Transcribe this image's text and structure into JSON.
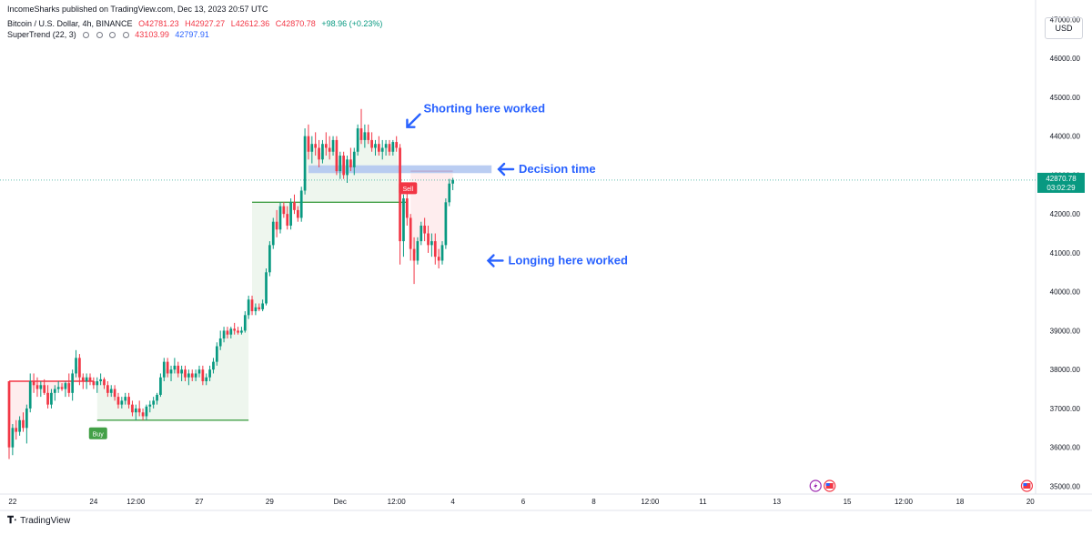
{
  "header": {
    "publisher": "IncomeSharks published on TradingView.com, Dec 13, 2023 20:57 UTC",
    "symbol": "Bitcoin / U.S. Dollar, 4h, BINANCE",
    "open_label": "O42781.23",
    "high_label": "H42927.27",
    "low_label": "L42612.36",
    "close_label": "C42870.78",
    "change_label": "+98.96 (+0.23%)",
    "indicator_name": "SuperTrend (22, 3)",
    "indicator_upper": "43103.99",
    "indicator_lower": "42797.91",
    "currency": "USD"
  },
  "footer": {
    "brand": "TradingView"
  },
  "colors": {
    "up": "#089981",
    "down": "#f23645",
    "supertrend_up": "#43a047",
    "supertrend_down": "#f23645",
    "zone": "#aec4f0",
    "annotation": "#2962ff"
  },
  "chart_data": {
    "type": "candlestick",
    "symbol": "BTCUSD",
    "timeframe": "4h",
    "y_range": [
      34800,
      47500
    ],
    "y_ticks": [
      35000,
      36000,
      37000,
      38000,
      39000,
      40000,
      41000,
      42000,
      43000,
      44000,
      45000,
      46000,
      47000
    ],
    "y_tick_labels": [
      "35000.00",
      "36000.00",
      "37000.00",
      "38000.00",
      "39000.00",
      "40000.00",
      "41000.00",
      "42000.00",
      "43000.00",
      "44000.00",
      "45000.00",
      "46000.00",
      "47000.00"
    ],
    "x_ticks": [
      {
        "label": "22",
        "bar": 1
      },
      {
        "label": "24",
        "bar": 24
      },
      {
        "label": "12:00",
        "bar": 36
      },
      {
        "label": "27",
        "bar": 54
      },
      {
        "label": "29",
        "bar": 74
      },
      {
        "label": "Dec",
        "bar": 94
      },
      {
        "label": "12:00",
        "bar": 110
      },
      {
        "label": "4",
        "bar": 126
      },
      {
        "label": "6",
        "bar": 146
      },
      {
        "label": "8",
        "bar": 166
      },
      {
        "label": "12:00",
        "bar": 182
      },
      {
        "label": "11",
        "bar": 197
      },
      {
        "label": "13",
        "bar": 218
      },
      {
        "label": "15",
        "bar": 238
      },
      {
        "label": "12:00",
        "bar": 254
      },
      {
        "label": "18",
        "bar": 270
      },
      {
        "label": "20",
        "bar": 290
      }
    ],
    "ohlc": [
      [
        37700,
        37700,
        35700,
        36000
      ],
      [
        36000,
        36600,
        35800,
        36500
      ],
      [
        36500,
        36700,
        36200,
        36400
      ],
      [
        36400,
        36800,
        36300,
        36700
      ],
      [
        36700,
        36900,
        36400,
        36500
      ],
      [
        36500,
        37100,
        36100,
        37000
      ],
      [
        37000,
        37900,
        36900,
        37700
      ],
      [
        37700,
        37900,
        37400,
        37600
      ],
      [
        37600,
        37800,
        37300,
        37500
      ],
      [
        37500,
        37700,
        37300,
        37600
      ],
      [
        37600,
        37750,
        37350,
        37400
      ],
      [
        37400,
        37600,
        37000,
        37100
      ],
      [
        37100,
        37500,
        37000,
        37400
      ],
      [
        37400,
        37600,
        37200,
        37500
      ],
      [
        37500,
        37700,
        37400,
        37550
      ],
      [
        37550,
        37650,
        37450,
        37500
      ],
      [
        37500,
        37700,
        37300,
        37650
      ],
      [
        37650,
        37900,
        37300,
        37400
      ],
      [
        37400,
        38000,
        37200,
        37900
      ],
      [
        37900,
        38500,
        37800,
        38300
      ],
      [
        38300,
        38400,
        37600,
        37800
      ],
      [
        37800,
        37900,
        37500,
        37700
      ],
      [
        37700,
        37900,
        37500,
        37800
      ],
      [
        37800,
        37900,
        37600,
        37700
      ],
      [
        37700,
        37800,
        37500,
        37600
      ],
      [
        37600,
        37800,
        37400,
        37700
      ],
      [
        37700,
        37900,
        37600,
        37750
      ],
      [
        37750,
        37800,
        37500,
        37600
      ],
      [
        37600,
        37700,
        37300,
        37400
      ],
      [
        37400,
        37600,
        37300,
        37500
      ],
      [
        37500,
        37600,
        37200,
        37300
      ],
      [
        37300,
        37400,
        37000,
        37100
      ],
      [
        37100,
        37300,
        37000,
        37200
      ],
      [
        37200,
        37400,
        37100,
        37300
      ],
      [
        37300,
        37400,
        37000,
        37100
      ],
      [
        37100,
        37200,
        36800,
        36900
      ],
      [
        36900,
        37100,
        36700,
        37000
      ],
      [
        37000,
        37200,
        36800,
        36900
      ],
      [
        36900,
        37000,
        36700,
        36800
      ],
      [
        36800,
        37100,
        36700,
        37050
      ],
      [
        37050,
        37200,
        36900,
        37100
      ],
      [
        37100,
        37300,
        37000,
        37200
      ],
      [
        37200,
        37400,
        37100,
        37350
      ],
      [
        37350,
        37900,
        37300,
        37800
      ],
      [
        37800,
        38300,
        37700,
        38200
      ],
      [
        38200,
        38300,
        37800,
        37900
      ],
      [
        37900,
        38100,
        37700,
        38000
      ],
      [
        38000,
        38300,
        37900,
        38100
      ],
      [
        38100,
        38200,
        37800,
        37900
      ],
      [
        37900,
        38100,
        37700,
        38000
      ],
      [
        38000,
        38100,
        37700,
        37800
      ],
      [
        37800,
        38000,
        37600,
        37900
      ],
      [
        37900,
        38000,
        37700,
        37800
      ],
      [
        37800,
        38000,
        37700,
        37900
      ],
      [
        37900,
        38100,
        37800,
        38000
      ],
      [
        38000,
        38100,
        37600,
        37700
      ],
      [
        37700,
        37900,
        37600,
        37800
      ],
      [
        37800,
        38100,
        37700,
        38000
      ],
      [
        38000,
        38300,
        37900,
        38200
      ],
      [
        38200,
        38700,
        38100,
        38600
      ],
      [
        38600,
        39000,
        38500,
        38800
      ],
      [
        38800,
        39100,
        38700,
        39000
      ],
      [
        39000,
        39100,
        38800,
        38900
      ],
      [
        38900,
        39100,
        38800,
        39050
      ],
      [
        39050,
        39200,
        38900,
        39000
      ],
      [
        39000,
        39100,
        38900,
        38950
      ],
      [
        38950,
        39100,
        38900,
        39000
      ],
      [
        39000,
        39500,
        38950,
        39400
      ],
      [
        39400,
        39900,
        39300,
        39800
      ],
      [
        39800,
        39900,
        39400,
        39500
      ],
      [
        39500,
        39700,
        39400,
        39600
      ],
      [
        39600,
        39700,
        39500,
        39550
      ],
      [
        39550,
        39800,
        39500,
        39700
      ],
      [
        39700,
        40600,
        39650,
        40500
      ],
      [
        40500,
        41300,
        40400,
        41200
      ],
      [
        41200,
        41900,
        41100,
        41800
      ],
      [
        41800,
        42100,
        41400,
        41600
      ],
      [
        41600,
        42300,
        41500,
        42200
      ],
      [
        42200,
        42300,
        41900,
        42000
      ],
      [
        42000,
        42200,
        41600,
        41700
      ],
      [
        41700,
        42400,
        41600,
        42300
      ],
      [
        42300,
        42500,
        42000,
        42100
      ],
      [
        42100,
        42200,
        41800,
        41900
      ],
      [
        41900,
        42700,
        41800,
        42600
      ],
      [
        42600,
        44200,
        42500,
        44000
      ],
      [
        44000,
        44300,
        43400,
        43600
      ],
      [
        43600,
        44000,
        43300,
        43800
      ],
      [
        43800,
        44100,
        43500,
        43700
      ],
      [
        43700,
        43900,
        43200,
        43400
      ],
      [
        43400,
        43900,
        43300,
        43800
      ],
      [
        43800,
        44100,
        43500,
        43700
      ],
      [
        43700,
        44000,
        43400,
        43600
      ],
      [
        43600,
        44000,
        43500,
        43900
      ],
      [
        43900,
        44000,
        43000,
        43100
      ],
      [
        43100,
        43600,
        42900,
        43500
      ],
      [
        43500,
        43600,
        42900,
        43000
      ],
      [
        43000,
        43500,
        42800,
        43400
      ],
      [
        43400,
        43700,
        43100,
        43200
      ],
      [
        43200,
        43700,
        43000,
        43600
      ],
      [
        43600,
        44300,
        43500,
        44200
      ],
      [
        44200,
        44700,
        43800,
        43900
      ],
      [
        43900,
        44300,
        43700,
        44100
      ],
      [
        44100,
        44300,
        43800,
        43900
      ],
      [
        43900,
        44100,
        43600,
        43700
      ],
      [
        43700,
        43900,
        43500,
        43800
      ],
      [
        43800,
        44000,
        43500,
        43600
      ],
      [
        43600,
        43900,
        43400,
        43700
      ],
      [
        43700,
        43900,
        43500,
        43800
      ],
      [
        43800,
        43900,
        43500,
        43600
      ],
      [
        43600,
        43900,
        43500,
        43850
      ],
      [
        43850,
        44000,
        43600,
        43700
      ],
      [
        43700,
        43800,
        40700,
        41300
      ],
      [
        41300,
        42500,
        40900,
        42400
      ],
      [
        42400,
        42600,
        41700,
        41900
      ],
      [
        41900,
        42000,
        40800,
        41100
      ],
      [
        41100,
        41400,
        40200,
        40800
      ],
      [
        40800,
        41400,
        40700,
        41300
      ],
      [
        41300,
        41800,
        41200,
        41700
      ],
      [
        41700,
        41900,
        41300,
        41500
      ],
      [
        41500,
        41700,
        41000,
        41200
      ],
      [
        41200,
        41500,
        40900,
        41300
      ],
      [
        41300,
        41500,
        40700,
        40900
      ],
      [
        40900,
        41100,
        40600,
        40800
      ],
      [
        40800,
        41300,
        40700,
        41200
      ],
      [
        41200,
        42400,
        41100,
        42300
      ],
      [
        42300,
        42900,
        42200,
        42781
      ],
      [
        42781,
        42927,
        42612,
        42871
      ]
    ],
    "supertrend": [
      {
        "trend": "down",
        "from": 0,
        "to": 24,
        "value": 37700
      },
      {
        "trend": "up",
        "from": 25,
        "to": 68,
        "value": 36700
      },
      {
        "trend": "up",
        "from": 69,
        "to": 113,
        "value": 42300
      },
      {
        "trend": "down",
        "from": 114,
        "to": 137,
        "value": 43100
      }
    ],
    "current_price": "42870.78",
    "countdown": "03:02:29",
    "signals": [
      {
        "label": "Buy",
        "bar": 25,
        "type": "buy"
      },
      {
        "label": "Sell",
        "bar": 113,
        "type": "sell"
      }
    ],
    "zone": {
      "y_low": 43050,
      "y_high": 43250,
      "from": 85,
      "to": 137
    },
    "annotations": [
      {
        "text": "Shorting here worked",
        "bar": 112,
        "price": 44000
      },
      {
        "text": "Decision time",
        "bar": 138,
        "price": 43150
      },
      {
        "text": "Longing here worked",
        "bar": 135,
        "price": 40800
      }
    ],
    "events": [
      {
        "icon": "lightning-icon",
        "bar": 229
      },
      {
        "icon": "us-flag-icon",
        "bar": 233
      },
      {
        "icon": "us-flag-icon",
        "bar": 289
      }
    ]
  }
}
